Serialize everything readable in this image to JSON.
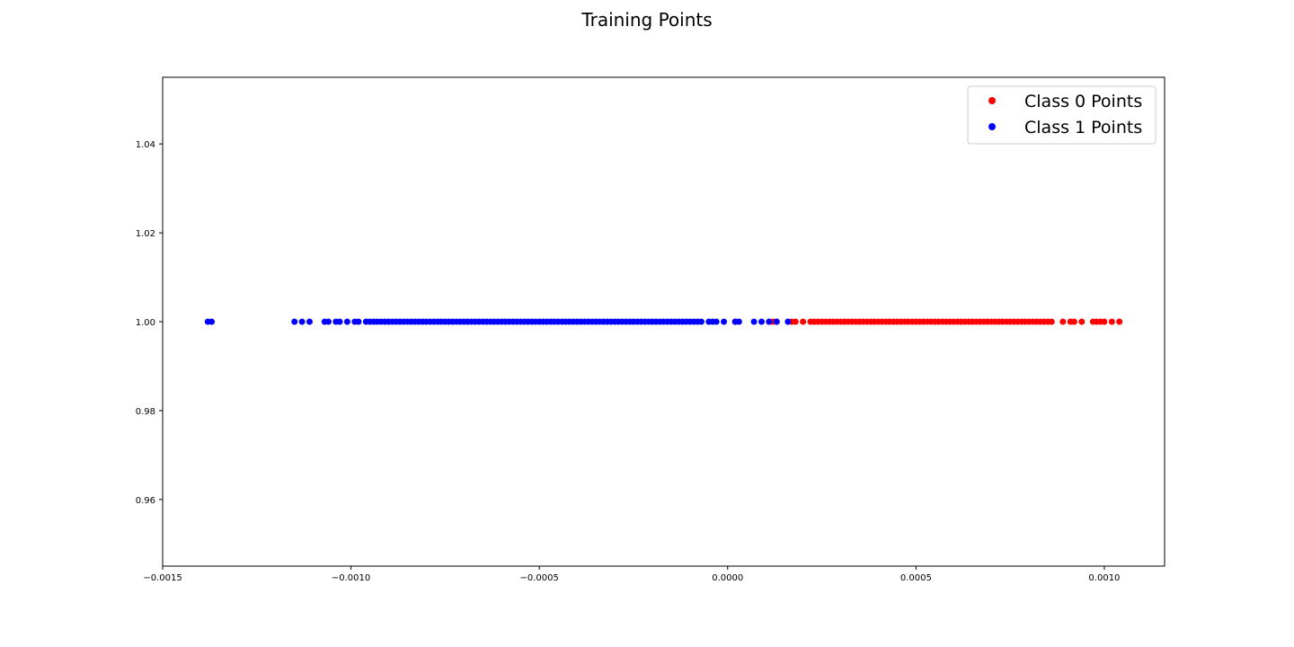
{
  "chart_data": {
    "type": "scatter",
    "title": "Training Points",
    "xlabel": "",
    "ylabel": "",
    "xlim": [
      -0.0015,
      0.00116
    ],
    "ylim": [
      0.945,
      1.055
    ],
    "xticks": [
      -0.0015,
      -0.001,
      -0.0005,
      0.0,
      0.0005,
      0.001
    ],
    "xtick_labels": [
      "−0.0015",
      "−0.0010",
      "−0.0005",
      "0.0000",
      "0.0005",
      "0.0010"
    ],
    "yticks": [
      0.96,
      0.98,
      1.0,
      1.02,
      1.04
    ],
    "ytick_labels": [
      "0.96",
      "0.98",
      "1.00",
      "1.02",
      "1.04"
    ],
    "grid": false,
    "legend": {
      "position": "top-right"
    },
    "series": [
      {
        "name": "Class 0 Points",
        "color": "#ff0000",
        "points": {
          "x": [
            2e-05,
            0.00011,
            0.00012,
            0.00013,
            0.00017,
            0.00018,
            0.0002,
            0.00022,
            0.00023,
            0.00024,
            0.00025,
            0.00026,
            0.00027,
            0.00028,
            0.00029,
            0.0003,
            0.00031,
            0.00032,
            0.00033,
            0.00034,
            0.00035,
            0.00036,
            0.00037,
            0.00038,
            0.00039,
            0.0004,
            0.00041,
            0.00042,
            0.00043,
            0.00044,
            0.00045,
            0.00046,
            0.00047,
            0.00048,
            0.00049,
            0.0005,
            0.00051,
            0.00052,
            0.00053,
            0.00054,
            0.00055,
            0.00056,
            0.00057,
            0.00058,
            0.00059,
            0.0006,
            0.00061,
            0.00062,
            0.00063,
            0.00064,
            0.00065,
            0.00066,
            0.00067,
            0.00068,
            0.00069,
            0.0007,
            0.00071,
            0.00072,
            0.00073,
            0.00074,
            0.00075,
            0.00076,
            0.00077,
            0.00078,
            0.00079,
            0.0008,
            0.00081,
            0.00082,
            0.00083,
            0.00084,
            0.00085,
            0.00086,
            0.00089,
            0.00091,
            0.00092,
            0.00094,
            0.00097,
            0.00098,
            0.00099,
            0.001,
            0.00102,
            0.00104
          ],
          "y": 1.0
        }
      },
      {
        "name": "Class 1 Points",
        "color": "#0000ff",
        "points": {
          "x": [
            -0.00138,
            -0.00137,
            -0.00115,
            -0.00113,
            -0.00111,
            -0.00107,
            -0.00106,
            -0.00104,
            -0.00103,
            -0.00101,
            -0.00099,
            -0.00098,
            -0.00096,
            -0.00095,
            -0.00094,
            -0.00093,
            -0.00092,
            -0.00091,
            -0.0009,
            -0.00089,
            -0.00088,
            -0.00087,
            -0.00086,
            -0.00085,
            -0.00084,
            -0.00083,
            -0.00082,
            -0.00081,
            -0.0008,
            -0.00079,
            -0.00078,
            -0.00077,
            -0.00076,
            -0.00075,
            -0.00074,
            -0.00073,
            -0.00072,
            -0.00071,
            -0.0007,
            -0.00069,
            -0.00068,
            -0.00067,
            -0.00066,
            -0.00065,
            -0.00064,
            -0.00063,
            -0.00062,
            -0.00061,
            -0.0006,
            -0.00059,
            -0.00058,
            -0.00057,
            -0.00056,
            -0.00055,
            -0.00054,
            -0.00053,
            -0.00052,
            -0.00051,
            -0.0005,
            -0.00049,
            -0.00048,
            -0.00047,
            -0.00046,
            -0.00045,
            -0.00044,
            -0.00043,
            -0.00042,
            -0.00041,
            -0.0004,
            -0.00039,
            -0.00038,
            -0.00037,
            -0.00036,
            -0.00035,
            -0.00034,
            -0.00033,
            -0.00032,
            -0.00031,
            -0.0003,
            -0.00029,
            -0.00028,
            -0.00027,
            -0.00026,
            -0.00025,
            -0.00024,
            -0.00023,
            -0.00022,
            -0.00021,
            -0.0002,
            -0.00019,
            -0.00018,
            -0.00017,
            -0.00016,
            -0.00015,
            -0.00014,
            -0.00013,
            -0.00012,
            -0.00011,
            -0.0001,
            -9e-05,
            -8e-05,
            -7e-05,
            -5e-05,
            -4e-05,
            -3e-05,
            -1e-05,
            2e-05,
            3e-05,
            7e-05,
            9e-05,
            0.00011,
            0.00013,
            0.00016
          ],
          "y": 1.0
        }
      }
    ]
  }
}
